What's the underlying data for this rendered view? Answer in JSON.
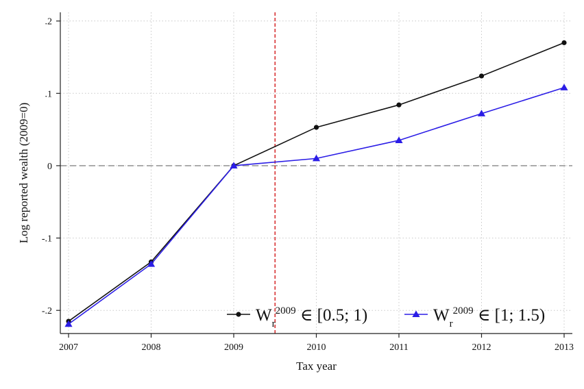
{
  "chart_data": {
    "type": "line",
    "xlabel": "Tax year",
    "ylabel": "Log reported wealth (2009=0)",
    "x": [
      2007,
      2008,
      2009,
      2010,
      2011,
      2012,
      2013
    ],
    "x_ticks": [
      "2007",
      "2008",
      "2009",
      "2010",
      "2011",
      "2012",
      "2013"
    ],
    "y_ticks": [
      {
        "value": -0.2,
        "label": "-.2"
      },
      {
        "value": -0.1,
        "label": "-.1"
      },
      {
        "value": 0,
        "label": "0"
      },
      {
        "value": 0.1,
        "label": ".1"
      },
      {
        "value": 0.2,
        "label": ".2"
      }
    ],
    "xlim": [
      2007,
      2013
    ],
    "ylim": [
      -0.232,
      0.212
    ],
    "grid": true,
    "reference_lines": [
      {
        "orientation": "horizontal",
        "value": 0,
        "color": "#999999",
        "style": "dashed"
      },
      {
        "orientation": "vertical",
        "value": 2009.5,
        "color": "#d62728",
        "style": "dashed"
      }
    ],
    "legend_position": "bottom-right",
    "series": [
      {
        "legend": {
          "base": "W",
          "sub": "r",
          "sup": "2009",
          "rest": " ∈ [0.5; 1)"
        },
        "color": "#111111",
        "marker": "circle",
        "values": [
          -0.215,
          -0.133,
          0.0,
          0.053,
          0.084,
          0.124,
          0.17
        ]
      },
      {
        "legend": {
          "base": "W",
          "sub": "r",
          "sup": "2009",
          "rest": " ∈ [1; 1.5)"
        },
        "color": "#2b1de6",
        "marker": "triangle",
        "values": [
          -0.219,
          -0.136,
          0.0,
          0.01,
          0.035,
          0.072,
          0.108
        ]
      }
    ]
  }
}
